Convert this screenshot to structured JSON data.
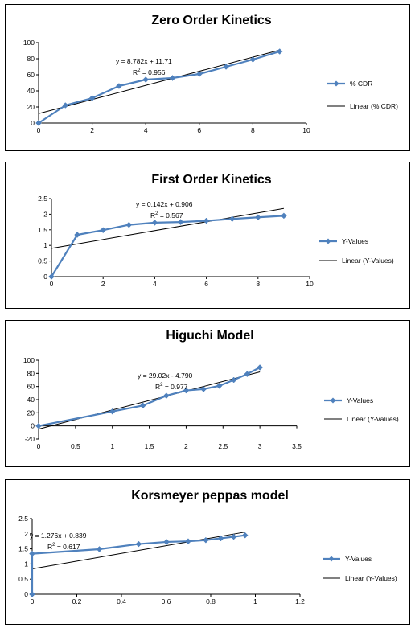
{
  "colors": {
    "series": "#4f81bd",
    "trend": "#000000"
  },
  "chart_data": [
    {
      "type": "scatter",
      "title": "Zero Order Kinetics",
      "x": [
        0,
        1,
        2,
        3,
        4,
        5,
        6,
        7,
        8,
        9
      ],
      "series": [
        {
          "name": "% CDR",
          "values": [
            0,
            22,
            31,
            46,
            54,
            56,
            61,
            70,
            79,
            89
          ]
        }
      ],
      "trendline": {
        "name": "Linear (% CDR)",
        "slope": 8.782,
        "intercept": 11.71,
        "x_range": [
          0,
          9
        ]
      },
      "equation": "y = 8.782x + 11.71",
      "r2_label": "R",
      "r2_value": " = 0.956",
      "xlim": [
        0,
        10
      ],
      "ylim": [
        0,
        100
      ],
      "xticks": [
        0,
        2,
        4,
        6,
        8,
        10
      ],
      "yticks": [
        0,
        20,
        40,
        60,
        80,
        100
      ],
      "xtick_labels": [
        "0",
        "2",
        "4",
        "6",
        "8",
        "10"
      ],
      "ytick_labels": [
        "0",
        "20",
        "40",
        "60",
        "80",
        "100"
      ],
      "legend_position": "right"
    },
    {
      "type": "scatter",
      "title": "First Order Kinetics",
      "x": [
        0,
        1,
        2,
        3,
        4,
        5,
        6,
        7,
        8,
        9
      ],
      "series": [
        {
          "name": "Y-Values",
          "values": [
            0,
            1.34,
            1.49,
            1.66,
            1.73,
            1.75,
            1.79,
            1.85,
            1.9,
            1.95
          ]
        }
      ],
      "trendline": {
        "name": "Linear (Y-Values)",
        "slope": 0.142,
        "intercept": 0.906,
        "x_range": [
          0,
          9
        ]
      },
      "equation": "y = 0.142x + 0.906",
      "r2_label": "R",
      "r2_value": " = 0.567",
      "xlim": [
        0,
        10
      ],
      "ylim": [
        0,
        2.5
      ],
      "xticks": [
        0,
        2,
        4,
        6,
        8,
        10
      ],
      "yticks": [
        0,
        0.5,
        1,
        1.5,
        2,
        2.5
      ],
      "xtick_labels": [
        "0",
        "2",
        "4",
        "6",
        "8",
        "10"
      ],
      "ytick_labels": [
        "0",
        "0.5",
        "1",
        "1.5",
        "2",
        "2.5"
      ],
      "legend_position": "right"
    },
    {
      "type": "scatter",
      "title": "Higuchi Model",
      "x": [
        0,
        1,
        1.414,
        1.732,
        2,
        2.236,
        2.449,
        2.646,
        2.828,
        3
      ],
      "series": [
        {
          "name": "Y-Values",
          "values": [
            0,
            22,
            31,
            46,
            54,
            56,
            61,
            70,
            79,
            89
          ]
        }
      ],
      "trendline": {
        "name": "Linear (Y-Values)",
        "slope": 29.02,
        "intercept": -4.79,
        "x_range": [
          0,
          3
        ]
      },
      "equation": "y = 29.02x - 4.790",
      "r2_label": "R",
      "r2_value": " = 0.977",
      "xlim": [
        0,
        3.5
      ],
      "ylim": [
        -20,
        100
      ],
      "xticks": [
        0,
        0.5,
        1,
        1.5,
        2,
        2.5,
        3,
        3.5
      ],
      "yticks": [
        -20,
        0,
        20,
        40,
        60,
        80,
        100
      ],
      "xtick_labels": [
        "0",
        "0.5",
        "1",
        "1.5",
        "2",
        "2.5",
        "3",
        "3.5"
      ],
      "ytick_labels": [
        "-20",
        "0",
        "20",
        "40",
        "60",
        "80",
        "100"
      ],
      "legend_position": "right"
    },
    {
      "type": "scatter",
      "title": "Korsmeyer peppas model",
      "x": [
        0,
        0,
        0.301,
        0.477,
        0.602,
        0.699,
        0.778,
        0.845,
        0.903,
        0.954
      ],
      "series": [
        {
          "name": "Y-Values",
          "values": [
            0,
            1.34,
            1.49,
            1.66,
            1.73,
            1.75,
            1.79,
            1.85,
            1.9,
            1.95
          ]
        }
      ],
      "trendline": {
        "name": "Linear (Y-Values)",
        "slope": 1.276,
        "intercept": 0.839,
        "x_range": [
          0,
          0.954
        ]
      },
      "equation": "y = 1.276x + 0.839",
      "r2_label": "R",
      "r2_value": " = 0.617",
      "xlim": [
        0,
        1.2
      ],
      "ylim": [
        0,
        2.5
      ],
      "xticks": [
        0,
        0.2,
        0.4,
        0.6,
        0.8,
        1,
        1.2
      ],
      "yticks": [
        0,
        0.5,
        1,
        1.5,
        2,
        2.5
      ],
      "xtick_labels": [
        "0",
        "0.2",
        "0.4",
        "0.6",
        "0.8",
        "1",
        "1.2"
      ],
      "ytick_labels": [
        "0",
        "0.5",
        "1",
        "1.5",
        "2",
        "2.5"
      ],
      "legend_position": "right"
    }
  ]
}
